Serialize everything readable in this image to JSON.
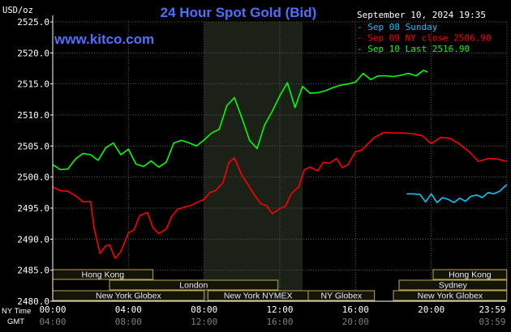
{
  "chart_data": {
    "type": "line",
    "title": "24 Hour Spot Gold (Bid)",
    "watermark": "www.kitco.com",
    "y_unit": "USD/oz",
    "timestamp": "September 10, 2024 19:35",
    "ylim": [
      2480,
      2525
    ],
    "y_ticks": [
      "2525.0",
      "2520.0",
      "2515.0",
      "2510.0",
      "2505.0",
      "2500.0",
      "2495.0",
      "2490.0",
      "2485.0",
      "2480.0"
    ],
    "x_ticks_ny": [
      "00:00",
      "04:00",
      "08:00",
      "12:00",
      "16:00",
      "20:00",
      "23:59"
    ],
    "x_ticks_gmt": [
      "04:00",
      "08:00",
      "12:00",
      "16:00",
      "20:00",
      "",
      "03:59"
    ],
    "x_row_labels": [
      "NY Time",
      "GMT"
    ],
    "grid": true,
    "legend_position": "top-right",
    "colors": {
      "background": "#000000",
      "grid": "#5a5a5a",
      "axes": "#ffffff",
      "title": "#4f6fff",
      "watermark": "#4f6fff",
      "shade": "#1c2117",
      "session_fill": "#151507",
      "session_border": "#b9a95a",
      "session_text": "#e8e8ff"
    },
    "series": [
      {
        "name": "Sep 08 Sunday",
        "color": "#00c8ff",
        "x_hours": [
          18.7,
          19.0,
          19.4,
          19.7,
          20.0,
          20.3,
          20.6,
          20.9,
          21.2,
          21.5,
          21.8,
          22.1,
          22.4,
          22.7,
          23.0,
          23.3,
          23.6,
          23.99
        ],
        "values": [
          2497.3,
          2497.3,
          2497.2,
          2496.0,
          2497.3,
          2495.9,
          2496.7,
          2496.4,
          2495.9,
          2496.6,
          2496.1,
          2496.9,
          2497.1,
          2496.7,
          2497.5,
          2497.3,
          2497.7,
          2498.8
        ]
      },
      {
        "name": "Sep 09 NY close 2506.90",
        "color": "#ff0000",
        "x_hours": [
          0.0,
          0.4,
          0.8,
          1.2,
          1.6,
          2.0,
          2.2,
          2.5,
          2.8,
          3.0,
          3.3,
          3.6,
          4.0,
          4.3,
          4.6,
          5.0,
          5.3,
          5.6,
          6.0,
          6.3,
          6.6,
          7.0,
          7.3,
          7.6,
          8.0,
          8.3,
          8.6,
          9.0,
          9.3,
          9.6,
          10.0,
          10.3,
          10.6,
          11.0,
          11.3,
          11.6,
          12.0,
          12.3,
          12.6,
          13.0,
          13.3,
          13.6,
          14.0,
          14.3,
          14.6,
          15.0,
          15.3,
          15.6,
          16.0,
          16.3,
          16.6,
          17.0,
          17.5,
          18.0,
          18.5,
          19.0,
          19.5,
          20.0,
          20.5,
          21.0,
          21.5,
          22.0,
          22.5,
          23.0,
          23.5,
          23.99
        ],
        "values": [
          2498.4,
          2497.8,
          2497.7,
          2497.0,
          2496.0,
          2496.1,
          2491.6,
          2487.7,
          2488.9,
          2489.1,
          2486.9,
          2488.0,
          2491.0,
          2491.5,
          2493.8,
          2494.3,
          2491.8,
          2490.9,
          2491.6,
          2493.7,
          2494.8,
          2495.2,
          2495.4,
          2495.9,
          2496.4,
          2497.5,
          2497.8,
          2499.1,
          2502.3,
          2503.1,
          2500.3,
          2498.9,
          2497.4,
          2495.7,
          2495.4,
          2494.1,
          2494.9,
          2495.3,
          2497.3,
          2498.4,
          2501.2,
          2501.6,
          2501.0,
          2502.4,
          2502.2,
          2503.0,
          2501.5,
          2502.0,
          2504.1,
          2504.3,
          2505.2,
          2506.4,
          2507.2,
          2507.1,
          2507.1,
          2507.0,
          2506.7,
          2505.4,
          2506.4,
          2506.2,
          2505.3,
          2504.1,
          2502.5,
          2503.0,
          2502.9,
          2502.5
        ]
      },
      {
        "name": "Sep 10 Last 2516.90",
        "color": "#00ff00",
        "x_hours": [
          0.0,
          0.4,
          0.8,
          1.2,
          1.6,
          2.0,
          2.4,
          2.8,
          3.2,
          3.6,
          4.0,
          4.4,
          4.8,
          5.2,
          5.6,
          6.0,
          6.4,
          6.8,
          7.2,
          7.6,
          8.0,
          8.4,
          8.8,
          9.2,
          9.6,
          10.0,
          10.4,
          10.8,
          11.2,
          11.6,
          12.0,
          12.4,
          12.8,
          13.2,
          13.6,
          14.0,
          14.4,
          14.8,
          15.2,
          15.6,
          16.0,
          16.4,
          16.8,
          17.2,
          17.6,
          18.0,
          18.4,
          18.8,
          19.2,
          19.6,
          19.8
        ],
        "values": [
          2502.0,
          2501.2,
          2501.3,
          2502.9,
          2503.8,
          2503.6,
          2502.7,
          2504.7,
          2505.5,
          2503.6,
          2504.5,
          2502.1,
          2501.7,
          2502.6,
          2501.6,
          2502.4,
          2505.5,
          2505.9,
          2505.5,
          2505.0,
          2506.0,
          2507.1,
          2507.7,
          2511.5,
          2512.8,
          2509.5,
          2505.9,
          2504.6,
          2508.4,
          2510.6,
          2513.1,
          2515.2,
          2511.2,
          2514.6,
          2513.5,
          2513.6,
          2513.9,
          2514.4,
          2514.8,
          2515.0,
          2515.3,
          2516.7,
          2515.7,
          2516.3,
          2516.3,
          2516.2,
          2516.4,
          2516.7,
          2516.3,
          2517.2,
          2516.9
        ]
      }
    ],
    "sessions_ny_hours": [
      {
        "name": "Hong Kong",
        "start": 0.0,
        "end": 5.3,
        "row": 1
      },
      {
        "name": "London",
        "start": 3.0,
        "end": 11.9,
        "row": 2
      },
      {
        "name": "New York Globex",
        "start": 0.0,
        "end": 8.0,
        "row": 3
      },
      {
        "name": "New York NYMEX",
        "start": 8.2,
        "end": 13.5,
        "row": 3
      },
      {
        "name": "NY Globex",
        "start": 13.5,
        "end": 17.0,
        "row": 3
      },
      {
        "name": "Hong Kong",
        "start": 20.1,
        "end": 23.99,
        "row": 1
      },
      {
        "name": "Sydney",
        "start": 18.3,
        "end": 23.99,
        "row": 2
      },
      {
        "name": "New York Globex",
        "start": 18.0,
        "end": 23.99,
        "row": 3
      }
    ],
    "shaded_range_hours": [
      8.0,
      13.2
    ]
  }
}
